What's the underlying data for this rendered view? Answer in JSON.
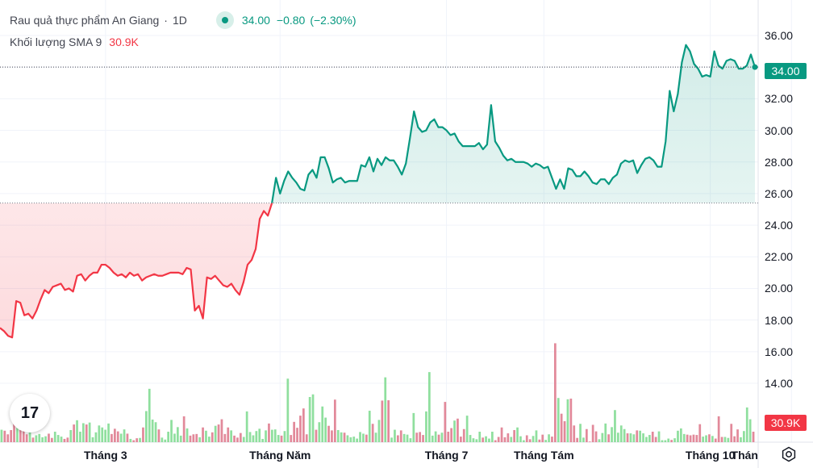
{
  "legend": {
    "symbol": "Rau quả thực phẩm An Giang",
    "dot": "·",
    "interval": "1D",
    "last": "34.00",
    "change": "−0.80",
    "change_pct": "(−2.30%)",
    "volume_label": "Khối lượng SMA 9",
    "volume_value": "30.9K"
  },
  "tags": {
    "last": "34.00",
    "volume": "30.9K"
  },
  "logo": "17",
  "icons": {
    "settings": "settings-gear-icon"
  },
  "colors": {
    "up": "#089981",
    "down": "#f23645",
    "vol_up": "#8fdf9e",
    "vol_down": "#e2899a"
  },
  "chart_data": {
    "type": "line",
    "baseline": 25.4,
    "last_price": 34.0,
    "ylim": [
      13.5,
      36.8
    ],
    "y_ticks": [
      "36.00",
      "34.00",
      "32.00",
      "30.00",
      "28.00",
      "26.00",
      "24.00",
      "22.00",
      "20.00",
      "18.00",
      "16.00",
      "14.00"
    ],
    "x_tick_labels": [
      {
        "label": "Tháng 3",
        "index": 26
      },
      {
        "label": "Tháng Năm",
        "index": 69
      },
      {
        "label": "Tháng 7",
        "index": 110
      },
      {
        "label": "Tháng Tám",
        "index": 134
      },
      {
        "label": "Tháng 10",
        "index": 175
      },
      {
        "label": "Thán",
        "index": 195
      }
    ],
    "series": [
      {
        "values": [
          17.5,
          17.3,
          17.0,
          16.9,
          19.2,
          19.1,
          18.3,
          18.4,
          18.1,
          18.6,
          19.3,
          19.9,
          19.7,
          20.1,
          20.2,
          20.3,
          19.9,
          20.0,
          19.8,
          20.8,
          20.9,
          20.5,
          20.8,
          21.0,
          21.0,
          21.5,
          21.5,
          21.3,
          21.0,
          20.8,
          20.9,
          20.7,
          21.0,
          20.8,
          20.9,
          20.5,
          20.7,
          20.8,
          20.9,
          20.8,
          20.8,
          20.9,
          21.0,
          21.0,
          21.0,
          20.9,
          21.3,
          21.2,
          18.6,
          18.9,
          18.1,
          20.7,
          20.6,
          20.8,
          20.5,
          20.2,
          20.1,
          20.3,
          19.9,
          19.6,
          20.4,
          21.5,
          21.8,
          22.5,
          24.4,
          24.9,
          24.6,
          25.4,
          27.0,
          26.0,
          26.8,
          27.4,
          27.0,
          26.7,
          26.3,
          26.2,
          27.2,
          27.5,
          27.0,
          28.3,
          28.3,
          27.6,
          26.7,
          26.9,
          27.0,
          26.7,
          26.8,
          26.8,
          26.8,
          27.8,
          27.7,
          28.3,
          27.4,
          28.2,
          27.8,
          28.3,
          28.1,
          28.1,
          27.7,
          27.2,
          27.9,
          29.5,
          31.2,
          30.2,
          29.9,
          30.0,
          30.5,
          30.7,
          30.2,
          30.2,
          30.0,
          29.7,
          29.8,
          29.3,
          29.0,
          29.0,
          29.0,
          29.0,
          29.2,
          28.8,
          29.1,
          31.6,
          29.3,
          28.9,
          28.4,
          28.1,
          28.2,
          28.0,
          28.0,
          28.0,
          27.9,
          27.7,
          27.9,
          27.8,
          27.6,
          27.7,
          27.0,
          26.3,
          26.9,
          26.3,
          27.6,
          27.5,
          27.1,
          27.1,
          27.4,
          27.1,
          26.7,
          26.6,
          26.9,
          26.9,
          26.6,
          27.0,
          27.2,
          27.9,
          28.1,
          28.0,
          28.1,
          27.3,
          27.8,
          28.2,
          28.3,
          28.1,
          27.7,
          27.7,
          29.3,
          32.5,
          31.2,
          32.3,
          34.3,
          35.4,
          35.0,
          34.2,
          33.9,
          33.4,
          33.5,
          33.4,
          35.0,
          34.1,
          33.9,
          34.4,
          34.5,
          34.4,
          33.9,
          33.9,
          34.1,
          34.8,
          34.0
        ]
      }
    ],
    "volume": {
      "values": [
        3.8,
        3.5,
        2.4,
        3.7,
        9.4,
        8.1,
        12.9,
        10.2,
        2.4,
        3.3,
        1.4,
        2.1,
        2.5,
        1.5,
        1.8,
        2.6,
        1.3,
        3.2,
        2.2,
        1.7,
        1.0,
        1.4,
        3.7,
        5.4,
        6.7,
        3.2,
        5.8,
        5.4,
        6.0,
        1.5,
        3.0,
        5.1,
        4.5,
        3.8,
        5.7,
        2.5,
        4.1,
        3.3,
        2.6,
        3.9,
        2.6,
        1.0,
        0.6,
        1.2,
        1.3,
        4.5,
        9.5,
        16.3,
        6.9,
        6.1,
        3.9,
        1.4,
        0.8,
        3.2,
        6.8,
        2.6,
        4.6,
        2.0,
        7.9,
        4.2,
        2.0,
        2.4,
        2.5,
        1.5,
        4.5,
        3.5,
        1.7,
        3.0,
        5.0,
        5.4,
        7.0,
        2.5,
        4.5,
        3.6,
        2.0,
        1.4,
        2.8,
        1.6,
        9.4,
        3.1,
        2.1,
        3.4,
        4.1,
        1.0,
        3.6,
        5.7,
        3.8,
        3.9,
        2.2,
        2.0,
        3.4,
        19.4,
        2.2,
        6.2,
        4.4,
        8.1,
        10.3,
        2.4,
        13.8,
        14.6,
        3.8,
        6.1,
        10.9,
        7.5,
        5.0,
        3.6,
        13.0,
        3.7,
        3.0,
        2.9,
        2.1,
        1.5,
        1.7,
        1.1,
        3.1,
        2.6,
        2.3,
        9.6,
        5.6,
        2.9,
        6.8,
        12.7,
        19.8,
        12.8,
        1.4,
        3.8,
        2.1,
        3.6,
        2.5,
        2.3,
        1.2,
        8.9,
        2.9,
        3.1,
        2.2,
        9.4,
        21.4,
        2.0,
        3.3,
        2.3,
        2.9,
        12.3,
        3.2,
        4.3,
        6.6,
        7.2,
        1.7,
        4.0,
        8.1,
        2.2,
        1.2,
        0.9,
        3.2,
        1.4,
        1.8,
        1.1,
        3.2,
        0.6,
        1.6,
        4.5,
        1.5,
        2.7,
        1.6,
        3.7,
        4.5,
        1.8,
        0.6,
        2.1,
        0.9,
        1.9,
        3.6,
        0.8,
        2.3,
        0.7,
        2.4,
        1.7,
        30.2,
        13.5,
        8.7,
        6.4,
        13.1,
        13.3,
        5.1,
        1.3,
        5.6,
        1.4,
        4.0,
        0.2,
        5.3,
        3.3,
        0.9,
        2.8,
        5.7,
        2.4,
        4.6,
        9.8,
        2.9,
        5.1,
        4.0,
        2.7,
        2.7,
        2.4,
        3.6,
        3.5,
        2.7,
        1.6,
        2.2,
        3.2,
        1.6,
        3.3,
        0.6,
        0.6,
        1.1,
        0.7,
        1.2,
        3.5,
        4.2,
        2.5,
        2.3,
        2.1,
        2.3,
        2.2,
        5.5,
        1.7,
        2.1,
        2.4,
        1.9,
        1.1,
        7.9,
        1.6,
        1.6,
        1.3,
        5.6,
        1.8,
        3.9,
        1.5,
        3.4,
        10.6,
        7.0,
        3.2
      ],
      "ylim": [
        0,
        34
      ]
    }
  }
}
